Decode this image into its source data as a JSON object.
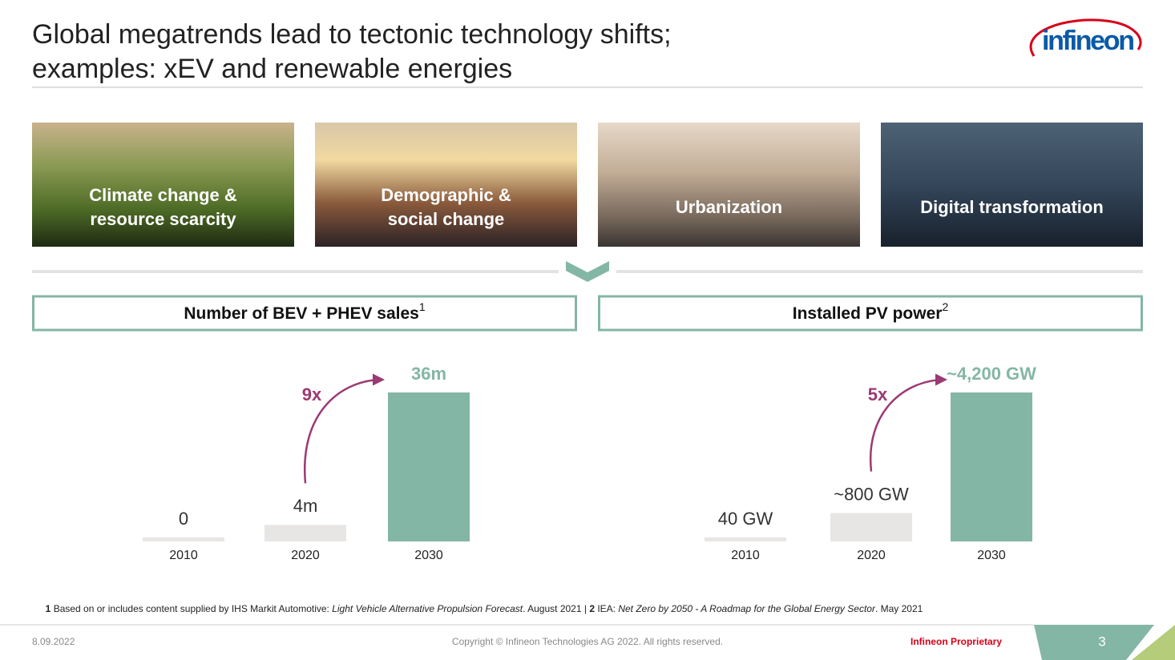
{
  "header": {
    "title_lines": [
      "Global megatrends lead to tectonic technology shifts;",
      "examples: xEV and renewable energies"
    ],
    "logo": "infineon"
  },
  "tiles": [
    {
      "lines": [
        "Climate change &",
        "resource scarcity"
      ]
    },
    {
      "lines": [
        "Demographic &",
        "social change"
      ]
    },
    {
      "lines": [
        "Urbanization"
      ]
    },
    {
      "lines": [
        "Digital transformation"
      ]
    }
  ],
  "chart_data": [
    {
      "type": "bar",
      "title": "Number of BEV + PHEV sales",
      "title_ref": "1",
      "categories": [
        "2010",
        "2020",
        "2030"
      ],
      "values": [
        0,
        4,
        36
      ],
      "value_labels": [
        "0",
        "4m",
        "36m"
      ],
      "colors": [
        "#e8e6e4",
        "#e8e6e4",
        "#84b6a6"
      ],
      "annotation": "9x",
      "annotation_color": "#9b3a74"
    },
    {
      "type": "bar",
      "title": "Installed PV power",
      "title_ref": "2",
      "categories": [
        "2010",
        "2020",
        "2030"
      ],
      "values": [
        40,
        800,
        4200
      ],
      "value_labels": [
        "40 GW",
        "~800 GW",
        "~4,200 GW"
      ],
      "colors": [
        "#e8e6e4",
        "#e8e6e4",
        "#84b6a6"
      ],
      "annotation": "5x",
      "annotation_color": "#9b3a74"
    }
  ],
  "footnote": [
    "1",
    " Based on or includes content supplied by IHS Markit Automotive: ",
    "Light Vehicle Alternative Propulsion Forecast",
    ". August 2021 | ",
    "2",
    " IEA: ",
    "Net Zero by 2050 - A Roadmap for the Global Energy Sector",
    ". May 2021"
  ],
  "footer": {
    "date": "8.09.2022",
    "copyright": "Copyright © Infineon Technologies AG 2022. All rights reserved.",
    "classification": "Infineon Proprietary",
    "page": "3"
  }
}
